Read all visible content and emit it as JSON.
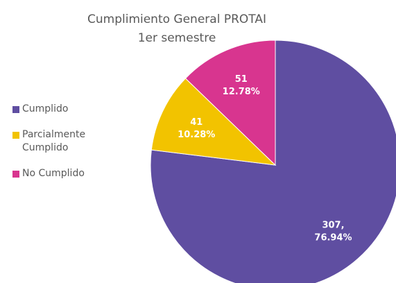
{
  "chart_data": {
    "type": "pie",
    "title": "Cumplimiento General PROTAI",
    "subtitle": "1er semestre",
    "categories": [
      "Cumplido",
      "Parcialmente Cumplido",
      "No Cumplido"
    ],
    "values": [
      307,
      41,
      51
    ],
    "value_labels": [
      "307,",
      "41",
      "51"
    ],
    "percentages": [
      76.94,
      10.28,
      12.78
    ],
    "percentage_labels": [
      "76.94%",
      "10.28%",
      "12.78%"
    ],
    "colors": [
      "#5f4ea1",
      "#f2c300",
      "#d8358f"
    ],
    "legend": "left"
  }
}
